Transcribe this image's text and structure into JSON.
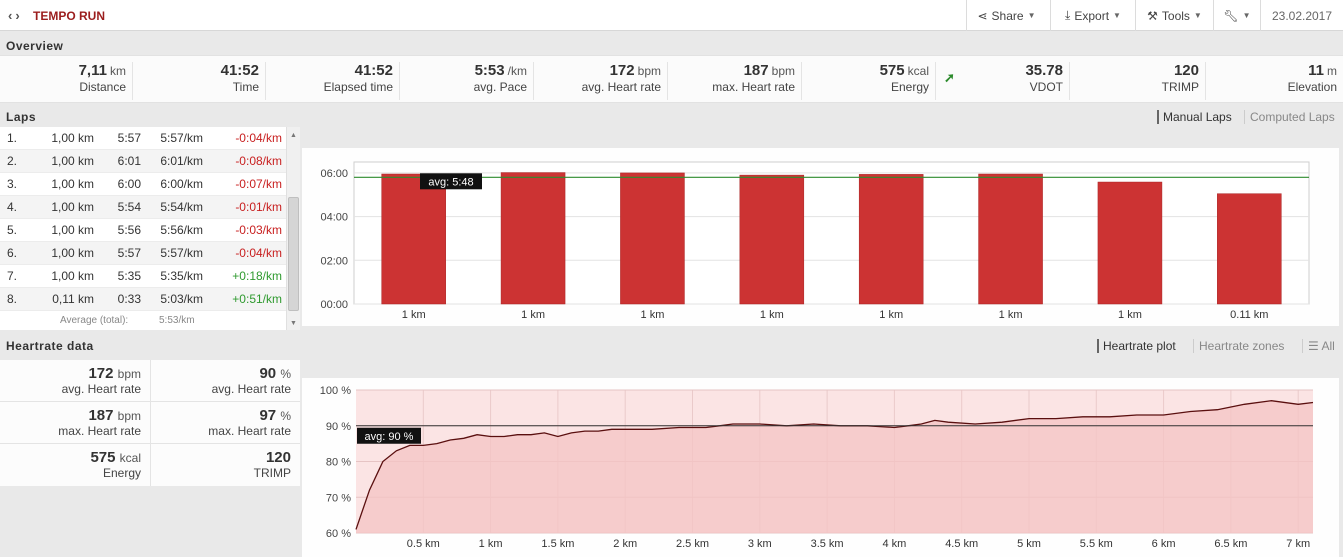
{
  "header": {
    "title": "TEMPO RUN",
    "share": "Share",
    "export": "Export",
    "tools": "Tools",
    "date": "23.02.2017"
  },
  "overview": {
    "section_title": "Overview",
    "items": [
      {
        "value": "7,11",
        "unit": "km",
        "label": "Distance"
      },
      {
        "value": "41:52",
        "unit": "",
        "label": "Time"
      },
      {
        "value": "41:52",
        "unit": "",
        "label": "Elapsed time"
      },
      {
        "value": "5:53",
        "unit": "/km",
        "label": "avg. Pace"
      },
      {
        "value": "172",
        "unit": "bpm",
        "label": "avg. Heart rate"
      },
      {
        "value": "187",
        "unit": "bpm",
        "label": "max. Heart rate"
      },
      {
        "value": "575",
        "unit": "kcal",
        "label": "Energy"
      },
      {
        "value": "35.78",
        "unit": "",
        "label": "VDOT"
      },
      {
        "value": "120",
        "unit": "",
        "label": "TRIMP"
      },
      {
        "value": "11",
        "unit": "m",
        "label": "Elevation"
      }
    ]
  },
  "laps": {
    "section_title": "Laps",
    "rows": [
      {
        "idx": "1.",
        "dist": "1,00 km",
        "time": "5:57",
        "pace": "5:57/km",
        "diff": "-0:04/km",
        "sign": "neg"
      },
      {
        "idx": "2.",
        "dist": "1,00 km",
        "time": "6:01",
        "pace": "6:01/km",
        "diff": "-0:08/km",
        "sign": "neg"
      },
      {
        "idx": "3.",
        "dist": "1,00 km",
        "time": "6:00",
        "pace": "6:00/km",
        "diff": "-0:07/km",
        "sign": "neg"
      },
      {
        "idx": "4.",
        "dist": "1,00 km",
        "time": "5:54",
        "pace": "5:54/km",
        "diff": "-0:01/km",
        "sign": "neg"
      },
      {
        "idx": "5.",
        "dist": "1,00 km",
        "time": "5:56",
        "pace": "5:56/km",
        "diff": "-0:03/km",
        "sign": "neg"
      },
      {
        "idx": "6.",
        "dist": "1,00 km",
        "time": "5:57",
        "pace": "5:57/km",
        "diff": "-0:04/km",
        "sign": "neg"
      },
      {
        "idx": "7.",
        "dist": "1,00 km",
        "time": "5:35",
        "pace": "5:35/km",
        "diff": "+0:18/km",
        "sign": "pos"
      },
      {
        "idx": "8.",
        "dist": "0,11 km",
        "time": "0:33",
        "pace": "5:03/km",
        "diff": "+0:51/km",
        "sign": "pos"
      }
    ],
    "total_label": "Average (total):",
    "total_value": "5:53/km",
    "switch_manual": "Manual Laps",
    "switch_computed": "Computed Laps"
  },
  "heartrate": {
    "section_title": "Heartrate data",
    "switch_plot": "Heartrate plot",
    "switch_zones": "Heartrate zones",
    "switch_all": "All",
    "stats": [
      {
        "value": "172",
        "unit": "bpm",
        "label": "avg. Heart rate"
      },
      {
        "value": "90",
        "unit": "%",
        "label": "avg. Heart rate"
      },
      {
        "value": "187",
        "unit": "bpm",
        "label": "max. Heart rate"
      },
      {
        "value": "97",
        "unit": "%",
        "label": "max. Heart rate"
      },
      {
        "value": "575",
        "unit": "kcal",
        "label": "Energy"
      },
      {
        "value": "120",
        "unit": "",
        "label": "TRIMP"
      }
    ]
  },
  "chart_data": [
    {
      "type": "bar",
      "categories": [
        "1 km",
        "1 km",
        "1 km",
        "1 km",
        "1 km",
        "1 km",
        "1 km",
        "0.11 km"
      ],
      "values_seconds": [
        357,
        361,
        360,
        354,
        356,
        357,
        335,
        303
      ],
      "y_ticks": [
        "00:00",
        "02:00",
        "04:00",
        "06:00"
      ],
      "ylim_seconds": [
        0,
        390
      ],
      "avg_seconds": 348,
      "avg_label": "avg: 5:48",
      "bar_color": "#cc3333",
      "avg_line_color": "#2e8b2e"
    },
    {
      "type": "area",
      "x_unit": "km",
      "x_ticks": [
        "0.5 km",
        "1 km",
        "1.5 km",
        "2 km",
        "2.5 km",
        "3 km",
        "3.5 km",
        "4 km",
        "4.5 km",
        "5 km",
        "5.5 km",
        "6 km",
        "6.5 km",
        "7 km"
      ],
      "y_ticks": [
        "60 %",
        "70 %",
        "80 %",
        "90 %",
        "100 %"
      ],
      "xlim": [
        0,
        7.11
      ],
      "ylim": [
        60,
        100
      ],
      "avg_value": 90,
      "avg_label": "avg: 90 %",
      "x": [
        0,
        0.1,
        0.2,
        0.3,
        0.4,
        0.5,
        0.6,
        0.7,
        0.8,
        0.9,
        1.0,
        1.1,
        1.2,
        1.3,
        1.4,
        1.5,
        1.6,
        1.7,
        1.8,
        1.9,
        2.0,
        2.2,
        2.4,
        2.6,
        2.7,
        2.8,
        3.0,
        3.2,
        3.4,
        3.6,
        3.8,
        4.0,
        4.1,
        4.2,
        4.3,
        4.4,
        4.6,
        4.8,
        5.0,
        5.2,
        5.4,
        5.6,
        5.8,
        6.0,
        6.2,
        6.4,
        6.6,
        6.8,
        7.0,
        7.11
      ],
      "y": [
        61,
        72,
        80,
        83,
        84.5,
        84.5,
        85,
        86,
        86.5,
        87.5,
        87,
        87,
        87.5,
        87.5,
        88,
        87,
        88,
        88.5,
        88.5,
        89,
        89,
        89,
        89.5,
        89.5,
        90,
        90.5,
        90.5,
        90,
        90.5,
        90,
        90,
        89.5,
        90,
        90.5,
        91.5,
        91,
        90.5,
        91,
        92,
        92,
        92.5,
        92.5,
        93,
        93,
        94,
        94.5,
        96,
        97,
        96,
        96.5
      ],
      "line_color": "#5a0f0f",
      "fill_color": "#f4c4c4"
    }
  ]
}
